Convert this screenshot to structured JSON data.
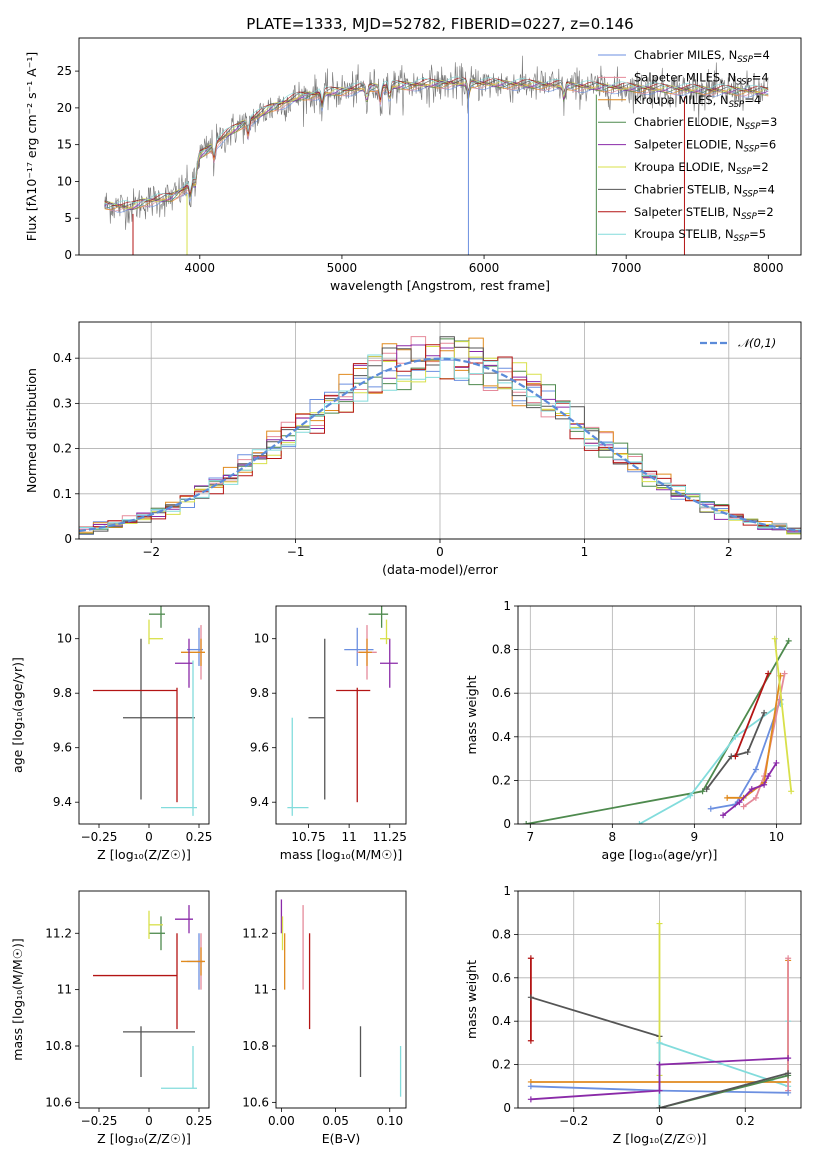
{
  "figure": {
    "title": "PLATE=1333, MJD=52782, FIBERID=0227, z=0.146",
    "colors": {
      "chabrier_miles": "#6b8fe0",
      "salpeter_miles": "#e58a9a",
      "kroupa_miles": "#e08a1e",
      "chabrier_elodie": "#4e8a4e",
      "salpeter_elodie": "#8a2aa8",
      "kroupa_elodie": "#d8e04a",
      "chabrier_stelib": "#555555",
      "salpeter_stelib": "#b31414",
      "kroupa_stelib": "#82dcdc",
      "gaussian": "#5b8bd9"
    }
  },
  "chart_data": [
    {
      "panel": "spectrum",
      "type": "line",
      "xlabel": "wavelength [Angstrom, rest frame]",
      "ylabel": "Flux [fλ10⁻¹⁷ erg cm⁻² s⁻¹ A⁻¹]",
      "xlim": [
        3150,
        8230
      ],
      "ylim": [
        0,
        29.5
      ],
      "xticks": [
        4000,
        5000,
        6000,
        7000,
        8000
      ],
      "yticks": [
        0,
        5,
        10,
        15,
        20,
        25
      ],
      "grid": false,
      "legend_position": "top-right",
      "legend": [
        "Chabrier MILES, N_SSP=4",
        "Salpeter MILES, N_SSP=4",
        "Kroupa MILES, N_SSP=4",
        "Chabrier ELODIE, N_SSP=3",
        "Salpeter ELODIE, N_SSP=6",
        "Kroupa ELODIE, N_SSP=2",
        "Chabrier STELIB, N_SSP=4",
        "Salpeter STELIB, N_SSP=2",
        "Kroupa STELIB, N_SSP=5"
      ],
      "continuum": {
        "x": [
          3330,
          3520,
          3600,
          3800,
          3950,
          4000,
          4100,
          4200,
          4300,
          4400,
          4500,
          4700,
          4860,
          5000,
          5200,
          5400,
          5600,
          5800,
          6000,
          6200,
          6400,
          6600,
          6800,
          7000,
          7200,
          7400,
          7600,
          7800,
          8000
        ],
        "y": [
          6.8,
          6.5,
          7.2,
          7.8,
          9.8,
          13.5,
          15.0,
          16.5,
          17.8,
          18.8,
          20.0,
          21.5,
          22.0,
          22.3,
          22.8,
          23.0,
          23.2,
          23.4,
          23.3,
          23.2,
          23.1,
          23.0,
          22.8,
          22.7,
          22.6,
          22.5,
          22.4,
          22.3,
          22.2
        ]
      },
      "absorption_features_x": [
        3933,
        3968,
        4101,
        4340,
        4861,
        5175,
        5270,
        5335,
        5890,
        6563
      ]
    },
    {
      "panel": "residual_distribution",
      "type": "bar",
      "xlabel": "(data-model)/error",
      "ylabel": "Normed distribution",
      "xlim": [
        -2.5,
        2.5
      ],
      "ylim": [
        0,
        0.48
      ],
      "xticks": [
        -2,
        -1,
        0,
        1,
        2
      ],
      "yticks": [
        0.0,
        0.1,
        0.2,
        0.3,
        0.4
      ],
      "grid": true,
      "legend": [
        "𝒩(0,1)"
      ],
      "legend_position": "top-right",
      "bin_width": 0.1
    },
    {
      "panel": "age_vs_Z",
      "type": "scatter",
      "xlabel": "Z [log₁₀(Z/Z☉)]",
      "ylabel": "age  [log₁₀(age/yr)]",
      "xlim": [
        -0.35,
        0.3
      ],
      "ylim": [
        9.32,
        10.12
      ],
      "xticks": [
        -0.25,
        0.0,
        0.25
      ],
      "yticks": [
        9.4,
        9.6,
        9.8,
        10.0
      ],
      "points": [
        {
          "x": 0.25,
          "y": 9.96,
          "xerr": [
            0.06,
            0.02
          ],
          "yerr": [
            0.06,
            0.08
          ],
          "series": "chabrier_miles"
        },
        {
          "x": 0.26,
          "y": 9.95,
          "xerr": [
            0.02,
            0.01
          ],
          "yerr": [
            0.1,
            0.1
          ],
          "series": "salpeter_miles"
        },
        {
          "x": 0.26,
          "y": 9.95,
          "xerr": [
            0.1,
            0.02
          ],
          "yerr": [
            0.05,
            0.05
          ],
          "series": "kroupa_miles"
        },
        {
          "x": 0.06,
          "y": 10.09,
          "xerr": [
            0.06,
            0.02
          ],
          "yerr": [
            0.05,
            0.05
          ],
          "series": "chabrier_elodie"
        },
        {
          "x": 0.2,
          "y": 9.91,
          "xerr": [
            0.07,
            0.02
          ],
          "yerr": [
            0.09,
            0.09
          ],
          "series": "salpeter_elodie"
        },
        {
          "x": 0.0,
          "y": 10.0,
          "xerr": [
            0.0,
            0.07
          ],
          "yerr": [
            0.02,
            0.07
          ],
          "series": "kroupa_elodie"
        },
        {
          "x": -0.04,
          "y": 9.71,
          "xerr": [
            0.09,
            0.27
          ],
          "yerr": [
            0.3,
            0.29
          ],
          "series": "chabrier_stelib"
        },
        {
          "x": 0.14,
          "y": 9.81,
          "xerr": [
            0.42,
            0.0
          ],
          "yerr": [
            0.41,
            0.01
          ],
          "series": "salpeter_stelib"
        },
        {
          "x": 0.22,
          "y": 9.38,
          "xerr": [
            0.16,
            0.02
          ],
          "yerr": [
            0.03,
            0.54
          ],
          "series": "kroupa_stelib"
        }
      ]
    },
    {
      "panel": "age_vs_mass",
      "type": "scatter",
      "xlabel": "mass [log₁₀(M/M☉)]",
      "ylabel": "",
      "xlim": [
        10.55,
        11.35
      ],
      "ylim": [
        9.32,
        10.12
      ],
      "xticks": [
        10.75,
        11.0,
        11.25
      ],
      "yticks": [
        9.4,
        9.6,
        9.8,
        10.0
      ],
      "points": [
        {
          "x": 11.05,
          "y": 9.96,
          "xerr": [
            0.08,
            0.1
          ],
          "yerr": [
            0.06,
            0.08
          ],
          "series": "chabrier_miles"
        },
        {
          "x": 11.11,
          "y": 9.95,
          "xerr": [
            0.06,
            0.06
          ],
          "yerr": [
            0.1,
            0.1
          ],
          "series": "salpeter_miles"
        },
        {
          "x": 11.11,
          "y": 9.95,
          "xerr": [
            0.05,
            0.03
          ],
          "yerr": [
            0.05,
            0.05
          ],
          "series": "kroupa_miles"
        },
        {
          "x": 11.2,
          "y": 10.09,
          "xerr": [
            0.08,
            0.04
          ],
          "yerr": [
            0.05,
            0.05
          ],
          "series": "chabrier_elodie"
        },
        {
          "x": 11.25,
          "y": 9.91,
          "xerr": [
            0.06,
            0.05
          ],
          "yerr": [
            0.09,
            0.09
          ],
          "series": "salpeter_elodie"
        },
        {
          "x": 11.23,
          "y": 10.0,
          "xerr": [
            0.04,
            0.02
          ],
          "yerr": [
            0.02,
            0.07
          ],
          "series": "kroupa_elodie"
        },
        {
          "x": 10.85,
          "y": 9.71,
          "xerr": [
            0.1,
            0.0
          ],
          "yerr": [
            0.3,
            0.29
          ],
          "series": "chabrier_stelib"
        },
        {
          "x": 11.05,
          "y": 9.81,
          "xerr": [
            0.13,
            0.08
          ],
          "yerr": [
            0.41,
            0.01
          ],
          "series": "salpeter_stelib"
        },
        {
          "x": 10.65,
          "y": 9.38,
          "xerr": [
            0.03,
            0.1
          ],
          "yerr": [
            0.03,
            0.33
          ],
          "series": "kroupa_stelib"
        }
      ]
    },
    {
      "panel": "weight_vs_age",
      "type": "line",
      "xlabel": "age  [log₁₀(age/yr)]",
      "ylabel": "mass weight",
      "xlim": [
        6.85,
        10.3
      ],
      "ylim": [
        0,
        1.0
      ],
      "xticks": [
        7,
        8,
        9,
        10
      ],
      "yticks": [
        0.0,
        0.2,
        0.4,
        0.6,
        0.8,
        1.0
      ],
      "grid": true,
      "series": [
        {
          "key": "chabrier_elodie",
          "x": [
            6.95,
            9.1,
            10.15
          ],
          "y": [
            0.0,
            0.15,
            0.84
          ]
        },
        {
          "key": "kroupa_stelib",
          "x": [
            8.33,
            8.95,
            9.5,
            10.05
          ],
          "y": [
            0.0,
            0.13,
            0.4,
            0.55
          ]
        },
        {
          "key": "chabrier_miles",
          "x": [
            9.2,
            9.5,
            9.75,
            10.05
          ],
          "y": [
            0.07,
            0.09,
            0.25,
            0.57
          ]
        },
        {
          "key": "salpeter_miles",
          "x": [
            9.6,
            9.75,
            9.85,
            10.1
          ],
          "y": [
            0.08,
            0.12,
            0.22,
            0.69
          ]
        },
        {
          "key": "kroupa_miles",
          "x": [
            9.4,
            9.6,
            9.85,
            10.05
          ],
          "y": [
            0.12,
            0.12,
            0.19,
            0.68
          ]
        },
        {
          "key": "salpeter_elodie",
          "x": [
            9.35,
            9.55,
            9.7,
            9.85,
            9.9,
            10.0
          ],
          "y": [
            0.04,
            0.1,
            0.16,
            0.18,
            0.22,
            0.28
          ]
        },
        {
          "key": "kroupa_elodie",
          "x": [
            9.98,
            10.18
          ],
          "y": [
            0.85,
            0.15
          ]
        },
        {
          "key": "chabrier_stelib",
          "x": [
            9.15,
            9.45,
            9.65,
            9.85
          ],
          "y": [
            0.16,
            0.31,
            0.33,
            0.51
          ]
        },
        {
          "key": "salpeter_stelib",
          "x": [
            9.5,
            9.9
          ],
          "y": [
            0.31,
            0.69
          ]
        }
      ]
    },
    {
      "panel": "mass_vs_Z",
      "type": "scatter",
      "xlabel": "Z [log₁₀(Z/Z☉)]",
      "ylabel": "mass [log₁₀(M/M☉)]",
      "xlim": [
        -0.35,
        0.3
      ],
      "ylim": [
        10.58,
        11.35
      ],
      "xticks": [
        -0.25,
        0.0,
        0.25
      ],
      "yticks": [
        10.6,
        10.8,
        11.0,
        11.2
      ],
      "points": [
        {
          "x": 0.25,
          "y": 11.1,
          "xerr": [
            0.06,
            0.02
          ],
          "yerr": [
            0.1,
            0.1
          ],
          "series": "chabrier_miles"
        },
        {
          "x": 0.26,
          "y": 11.1,
          "xerr": [
            0.02,
            0.01
          ],
          "yerr": [
            0.1,
            0.1
          ],
          "series": "salpeter_miles"
        },
        {
          "x": 0.26,
          "y": 11.1,
          "xerr": [
            0.1,
            0.02
          ],
          "yerr": [
            0.05,
            0.05
          ],
          "series": "kroupa_miles"
        },
        {
          "x": 0.06,
          "y": 11.2,
          "xerr": [
            0.06,
            0.02
          ],
          "yerr": [
            0.06,
            0.06
          ],
          "series": "chabrier_elodie"
        },
        {
          "x": 0.2,
          "y": 11.25,
          "xerr": [
            0.07,
            0.02
          ],
          "yerr": [
            0.05,
            0.05
          ],
          "series": "salpeter_elodie"
        },
        {
          "x": 0.0,
          "y": 11.23,
          "xerr": [
            0.0,
            0.07
          ],
          "yerr": [
            0.05,
            0.05
          ],
          "series": "kroupa_elodie"
        },
        {
          "x": -0.04,
          "y": 10.85,
          "xerr": [
            0.09,
            0.27
          ],
          "yerr": [
            0.16,
            0.02
          ],
          "series": "chabrier_stelib"
        },
        {
          "x": 0.14,
          "y": 11.05,
          "xerr": [
            0.42,
            0.0
          ],
          "yerr": [
            0.19,
            0.15
          ],
          "series": "salpeter_stelib"
        },
        {
          "x": 0.22,
          "y": 10.65,
          "xerr": [
            0.16,
            0.02
          ],
          "yerr": [
            0.0,
            0.15
          ],
          "series": "kroupa_stelib"
        }
      ]
    },
    {
      "panel": "mass_vs_ebv",
      "type": "scatter",
      "xlabel": "E(B-V)",
      "ylabel": "",
      "xlim": [
        -0.005,
        0.115
      ],
      "ylim": [
        10.58,
        11.35
      ],
      "xticks": [
        0.0,
        0.05,
        0.1
      ],
      "xticklabels": [
        "0.00",
        "0.05",
        "0.10"
      ],
      "yticks": [
        10.6,
        10.8,
        11.0,
        11.2
      ],
      "points": [
        {
          "x": 0.0,
          "y": 11.25,
          "yerr": [
            0.05,
            0.07
          ],
          "series": "salpeter_elodie"
        },
        {
          "x": 0.001,
          "y": 11.2,
          "yerr": [
            0.06,
            0.06
          ],
          "series": "kroupa_elodie"
        },
        {
          "x": 0.003,
          "y": 11.1,
          "yerr": [
            0.1,
            0.1
          ],
          "series": "kroupa_miles"
        },
        {
          "x": 0.02,
          "y": 11.1,
          "yerr": [
            0.1,
            0.2
          ],
          "series": "salpeter_miles"
        },
        {
          "x": 0.026,
          "y": 11.03,
          "yerr": [
            0.17,
            0.17
          ],
          "series": "salpeter_stelib"
        },
        {
          "x": 0.073,
          "y": 10.78,
          "yerr": [
            0.09,
            0.09
          ],
          "series": "chabrier_stelib"
        },
        {
          "x": 0.11,
          "y": 10.72,
          "yerr": [
            0.1,
            0.08
          ],
          "series": "kroupa_stelib"
        }
      ]
    },
    {
      "panel": "weight_vs_Z",
      "type": "line",
      "xlabel": "Z [log₁₀(Z/Z☉)]",
      "ylabel": "mass weight",
      "xlim": [
        -0.33,
        0.33
      ],
      "ylim": [
        0,
        1.0
      ],
      "xticks": [
        -0.2,
        0.0,
        0.2
      ],
      "yticks": [
        0.0,
        0.2,
        0.4,
        0.6,
        0.8,
        1.0
      ],
      "grid": true,
      "series": [
        {
          "key": "salpeter_stelib",
          "x": [
            -0.3,
            -0.3
          ],
          "y": [
            0.31,
            0.69
          ]
        },
        {
          "key": "chabrier_stelib",
          "x": [
            -0.3,
            0.0,
            0.0
          ],
          "y": [
            0.51,
            0.33,
            0.0
          ]
        },
        {
          "key": "kroupa_elodie",
          "x": [
            0.0,
            0.0
          ],
          "y": [
            0.15,
            0.85
          ]
        },
        {
          "key": "kroupa_stelib",
          "x": [
            0.0,
            0.0,
            0.3,
            0.3
          ],
          "y": [
            0.0,
            0.3,
            0.1,
            0.4
          ]
        },
        {
          "key": "kroupa_miles",
          "x": [
            -0.3,
            0.3,
            0.3
          ],
          "y": [
            0.12,
            0.12,
            0.68
          ]
        },
        {
          "key": "salpeter_miles",
          "x": [
            0.3,
            0.3
          ],
          "y": [
            0.08,
            0.69
          ]
        },
        {
          "key": "chabrier_miles",
          "x": [
            -0.3,
            0.0,
            0.3
          ],
          "y": [
            0.1,
            0.08,
            0.07
          ]
        },
        {
          "key": "salpeter_elodie",
          "x": [
            -0.3,
            0.0,
            0.0,
            0.3
          ],
          "y": [
            0.04,
            0.08,
            0.2,
            0.23
          ]
        },
        {
          "key": "chabrier_elodie",
          "x": [
            0.0,
            0.3
          ],
          "y": [
            0.0,
            0.15
          ]
        },
        {
          "key": "chabrier_stelib",
          "x": [
            0.0,
            0.3
          ],
          "y": [
            0.0,
            0.16
          ]
        }
      ]
    }
  ]
}
